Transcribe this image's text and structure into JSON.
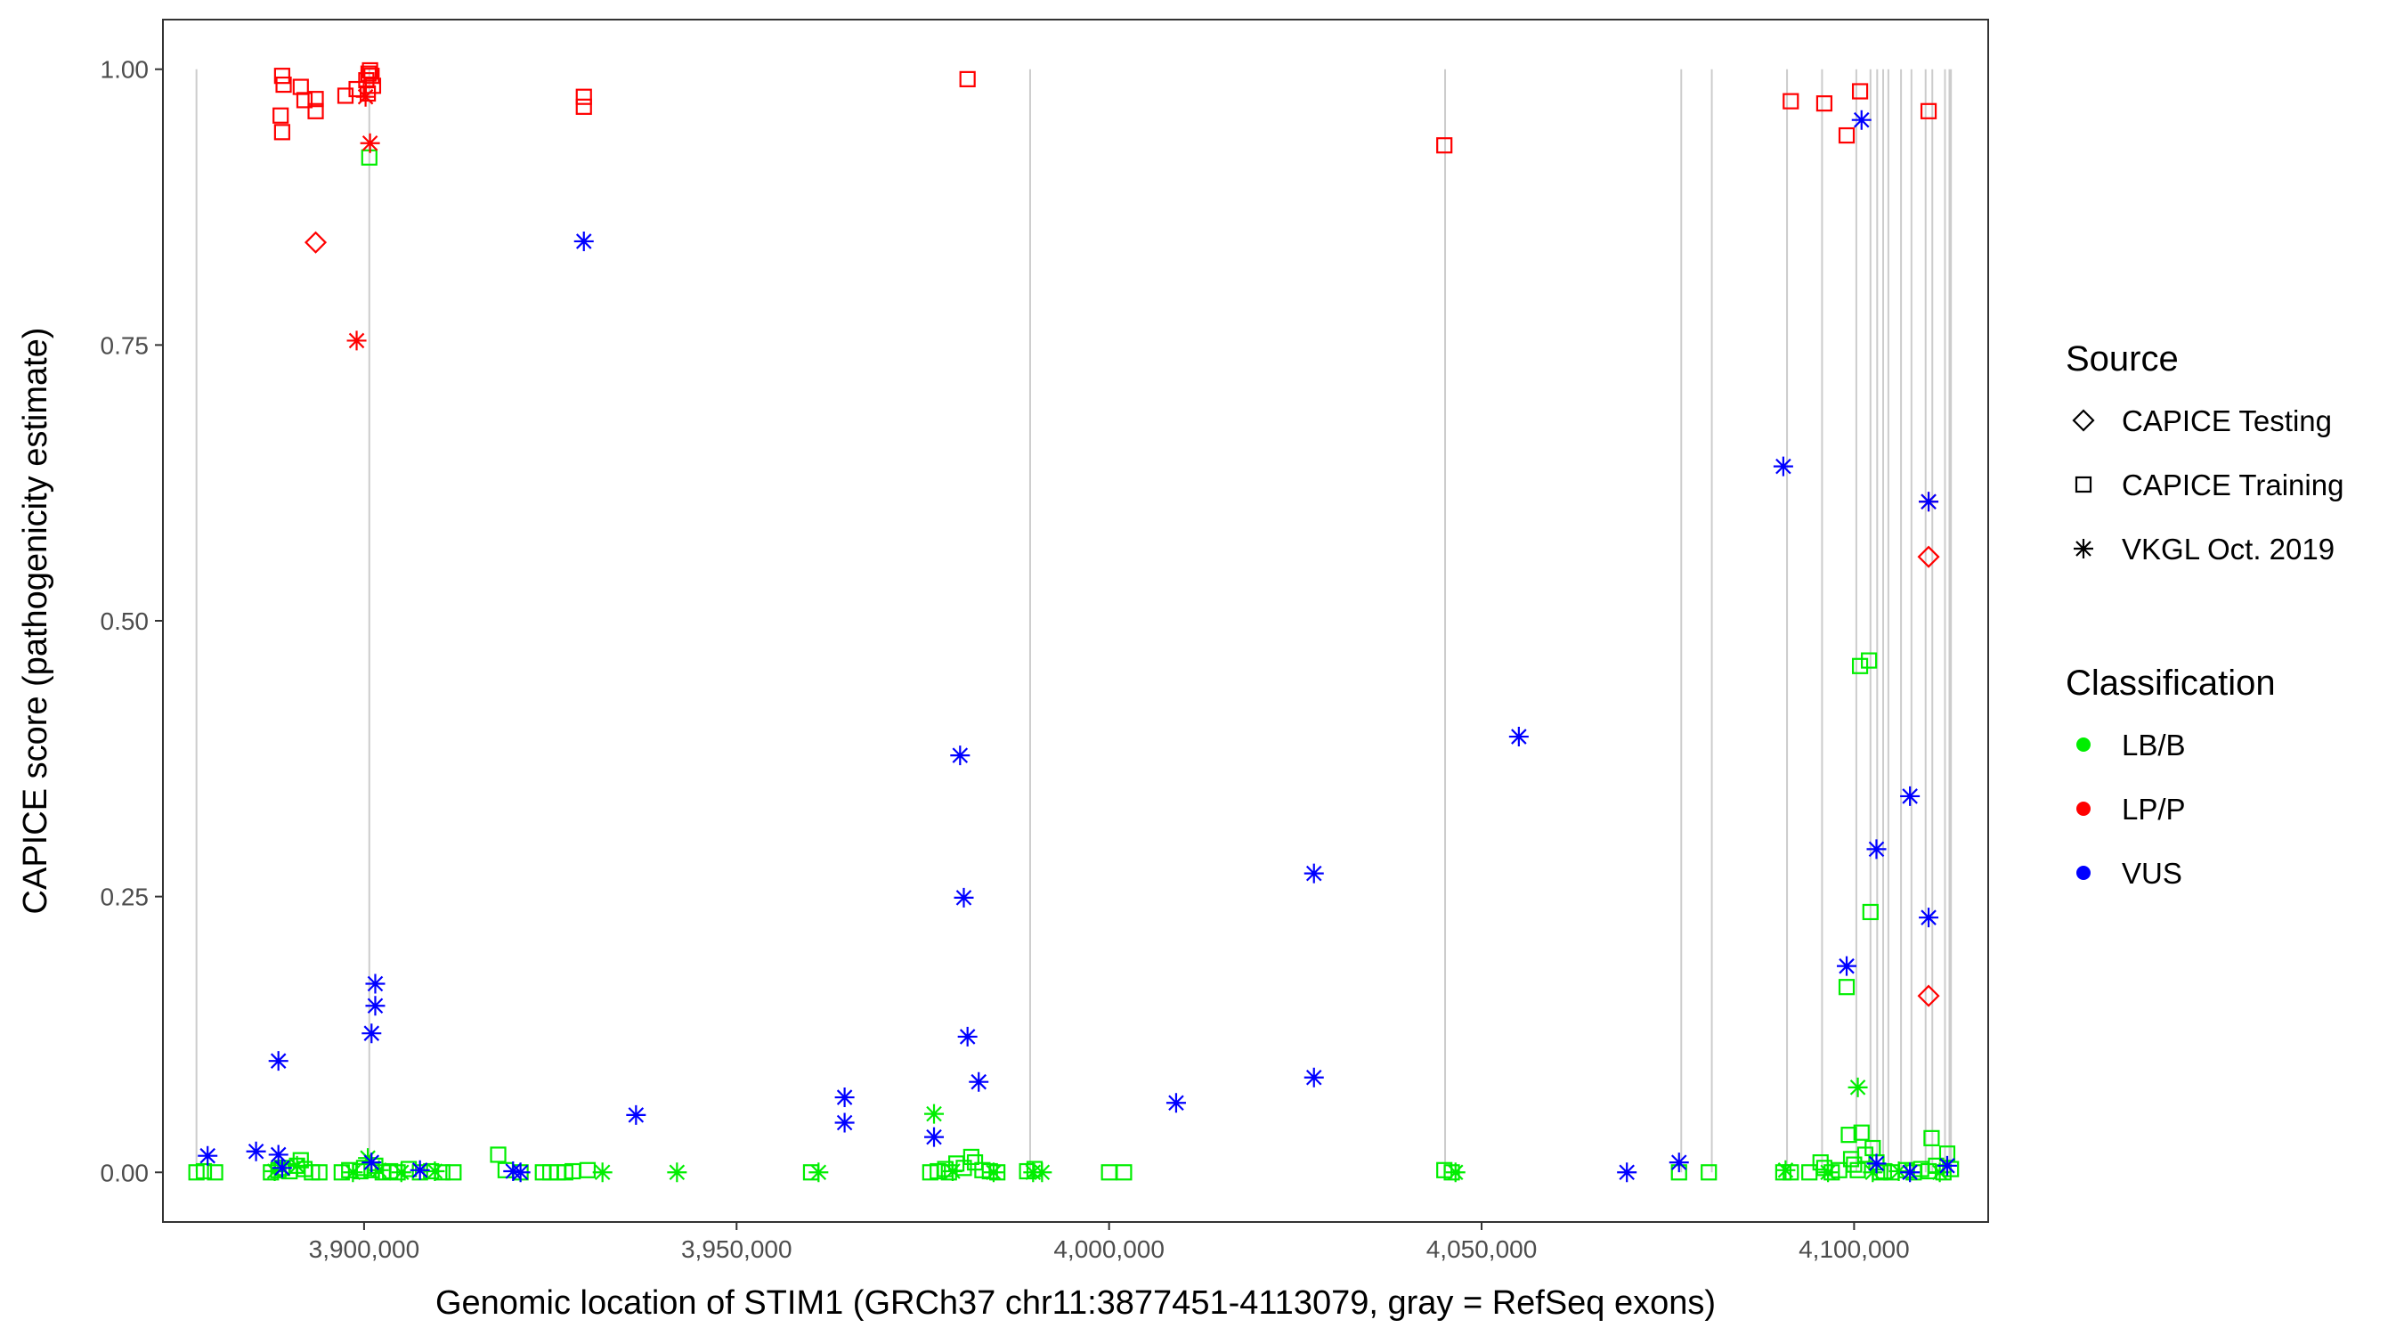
{
  "chart_data": {
    "type": "scatter",
    "xlabel": "Genomic location of STIM1 (GRCh37 chr11:3877451-4113079, gray = RefSeq exons)",
    "ylabel": "CAPICE score (pathogenicity estimate)",
    "xlim": [
      3873000,
      4118000
    ],
    "ylim": [
      -0.045,
      1.045
    ],
    "x_ticks": [
      3900000,
      3950000,
      4000000,
      4050000,
      4100000
    ],
    "x_tick_labels": [
      "3,900,000",
      "3,950,000",
      "4,000,000",
      "4,050,000",
      "4,100,000"
    ],
    "y_ticks": [
      0,
      0.25,
      0.5,
      0.75,
      1.0
    ],
    "y_tick_labels": [
      "0.00",
      "0.25",
      "0.50",
      "0.75",
      "1.00"
    ],
    "grid": false,
    "exon_lines_x": [
      3877500,
      3900700,
      3989400,
      4045100,
      4076800,
      4080900,
      4091000,
      4095700,
      4100300,
      4102200,
      4103100,
      4103900,
      4104600,
      4106300,
      4107700,
      4109600,
      4110500,
      4112200,
      4112800,
      4113000
    ],
    "exon_line_color": "#cccccc",
    "legend": {
      "placement": "right",
      "source_title": "Source",
      "source_items": [
        {
          "label": "CAPICE Testing",
          "shape": "diamond"
        },
        {
          "label": "CAPICE Training",
          "shape": "square"
        },
        {
          "label": "VKGL Oct. 2019",
          "shape": "asterisk"
        }
      ],
      "class_title": "Classification",
      "class_items": [
        {
          "label": "LB/B",
          "color": "#00ee00"
        },
        {
          "label": "LP/P",
          "color": "#ff0000"
        },
        {
          "label": "VUS",
          "color": "#0000ff"
        }
      ]
    },
    "series": [
      {
        "name": "LB/B",
        "color": "#00ee00",
        "points": [
          [
            3877500,
            0,
            "square"
          ],
          [
            3878500,
            0.001,
            "square"
          ],
          [
            3880000,
            0,
            "square"
          ],
          [
            3887500,
            0,
            "square"
          ],
          [
            3888500,
            0.002,
            "square"
          ],
          [
            3889000,
            0.004,
            "square"
          ],
          [
            3890000,
            0.001,
            "square"
          ],
          [
            3891000,
            0.006,
            "square"
          ],
          [
            3891500,
            0.011,
            "square"
          ],
          [
            3892000,
            0.003,
            "square"
          ],
          [
            3893000,
            0,
            "square"
          ],
          [
            3894000,
            0,
            "square"
          ],
          [
            3897000,
            0,
            "square"
          ],
          [
            3898000,
            0.002,
            "square"
          ],
          [
            3899500,
            0.001,
            "square"
          ],
          [
            3900000,
            0.004,
            "square"
          ],
          [
            3900700,
            0.92,
            "square"
          ],
          [
            3901000,
            0.002,
            "square"
          ],
          [
            3901500,
            0.006,
            "square"
          ],
          [
            3902500,
            0,
            "square"
          ],
          [
            3903500,
            0.001,
            "square"
          ],
          [
            3904500,
            0,
            "square"
          ],
          [
            3906000,
            0.003,
            "square"
          ],
          [
            3907500,
            0,
            "square"
          ],
          [
            3909000,
            0.001,
            "square"
          ],
          [
            3910500,
            0,
            "square"
          ],
          [
            3912000,
            0,
            "square"
          ],
          [
            3918000,
            0.016,
            "square"
          ],
          [
            3919000,
            0.002,
            "square"
          ],
          [
            3921000,
            0,
            "square"
          ],
          [
            3924000,
            0,
            "square"
          ],
          [
            3925000,
            0,
            "square"
          ],
          [
            3926000,
            0,
            "square"
          ],
          [
            3927000,
            0,
            "square"
          ],
          [
            3928000,
            0.001,
            "square"
          ],
          [
            3930000,
            0.002,
            "square"
          ],
          [
            3960000,
            0,
            "square"
          ],
          [
            3976000,
            0,
            "square"
          ],
          [
            3977000,
            0.001,
            "square"
          ],
          [
            3978000,
            0.003,
            "square"
          ],
          [
            3978500,
            0,
            "square"
          ],
          [
            3979500,
            0.008,
            "square"
          ],
          [
            3980500,
            0.004,
            "square"
          ],
          [
            3981500,
            0.014,
            "square"
          ],
          [
            3982000,
            0.009,
            "square"
          ],
          [
            3983000,
            0.002,
            "square"
          ],
          [
            3984000,
            0.001,
            "square"
          ],
          [
            3985000,
            0,
            "square"
          ],
          [
            3989000,
            0.001,
            "square"
          ],
          [
            3990000,
            0.003,
            "square"
          ],
          [
            4000000,
            0,
            "square"
          ],
          [
            4002000,
            0,
            "square"
          ],
          [
            4045000,
            0.002,
            "square"
          ],
          [
            4046000,
            0,
            "square"
          ],
          [
            4076500,
            0,
            "square"
          ],
          [
            4080500,
            0,
            "square"
          ],
          [
            4090500,
            0,
            "square"
          ],
          [
            4091500,
            0,
            "square"
          ],
          [
            4094000,
            0,
            "square"
          ],
          [
            4095500,
            0.009,
            "square"
          ],
          [
            4096000,
            0.004,
            "square"
          ],
          [
            4097000,
            0,
            "square"
          ],
          [
            4098000,
            0.002,
            "square"
          ],
          [
            4099000,
            0.168,
            "square"
          ],
          [
            4099300,
            0.034,
            "square"
          ],
          [
            4099600,
            0.012,
            "square"
          ],
          [
            4100000,
            0.007,
            "square"
          ],
          [
            4100500,
            0.002,
            "square"
          ],
          [
            4100800,
            0.459,
            "square"
          ],
          [
            4101000,
            0.036,
            "square"
          ],
          [
            4101500,
            0.016,
            "square"
          ],
          [
            4102000,
            0.464,
            "square"
          ],
          [
            4102200,
            0.236,
            "square"
          ],
          [
            4102500,
            0.022,
            "square"
          ],
          [
            4103000,
            0.009,
            "square"
          ],
          [
            4103500,
            0,
            "square"
          ],
          [
            4104000,
            0.001,
            "square"
          ],
          [
            4105000,
            0,
            "square"
          ],
          [
            4107000,
            0.002,
            "square"
          ],
          [
            4108000,
            0,
            "square"
          ],
          [
            4109000,
            0.003,
            "square"
          ],
          [
            4110000,
            0.001,
            "square"
          ],
          [
            4110400,
            0.031,
            "square"
          ],
          [
            4111000,
            0.006,
            "square"
          ],
          [
            4112000,
            0,
            "square"
          ],
          [
            4112500,
            0.017,
            "square"
          ],
          [
            4113000,
            0.003,
            "square"
          ],
          [
            3888000,
            0.001,
            "asterisk"
          ],
          [
            3891000,
            0.006,
            "asterisk"
          ],
          [
            3898500,
            0,
            "asterisk"
          ],
          [
            3900500,
            0.013,
            "asterisk"
          ],
          [
            3902000,
            0.002,
            "asterisk"
          ],
          [
            3905000,
            0,
            "asterisk"
          ],
          [
            3909500,
            0.001,
            "asterisk"
          ],
          [
            3932000,
            0,
            "asterisk"
          ],
          [
            3942000,
            0,
            "asterisk"
          ],
          [
            3961000,
            0,
            "asterisk"
          ],
          [
            3976500,
            0.053,
            "asterisk"
          ],
          [
            3979000,
            0.001,
            "asterisk"
          ],
          [
            3984500,
            0,
            "asterisk"
          ],
          [
            3989800,
            0,
            "asterisk"
          ],
          [
            3991000,
            0,
            "asterisk"
          ],
          [
            4046500,
            0,
            "asterisk"
          ],
          [
            4090800,
            0.002,
            "asterisk"
          ],
          [
            4096500,
            0,
            "asterisk"
          ],
          [
            4100500,
            0.077,
            "asterisk"
          ],
          [
            4102500,
            0,
            "asterisk"
          ],
          [
            4106000,
            0.001,
            "asterisk"
          ],
          [
            4111500,
            0,
            "asterisk"
          ]
        ]
      },
      {
        "name": "LP/P",
        "color": "#ff0000",
        "points": [
          [
            3889000,
            0.994,
            "square"
          ],
          [
            3889200,
            0.986,
            "square"
          ],
          [
            3888800,
            0.958,
            "square"
          ],
          [
            3889000,
            0.943,
            "square"
          ],
          [
            3891500,
            0.984,
            "square"
          ],
          [
            3892000,
            0.972,
            "square"
          ],
          [
            3893500,
            0.973,
            "square"
          ],
          [
            3893500,
            0.962,
            "square"
          ],
          [
            3897500,
            0.976,
            "square"
          ],
          [
            3899000,
            0.982,
            "square"
          ],
          [
            3900300,
            0.99,
            "square"
          ],
          [
            3900600,
            0.996,
            "square"
          ],
          [
            3900800,
            0.999,
            "square"
          ],
          [
            3901000,
            0.994,
            "square"
          ],
          [
            3901200,
            0.985,
            "square"
          ],
          [
            3900500,
            0.978,
            "square"
          ],
          [
            3929500,
            0.975,
            "square"
          ],
          [
            3929500,
            0.966,
            "square"
          ],
          [
            3981000,
            0.991,
            "square"
          ],
          [
            4045000,
            0.931,
            "square"
          ],
          [
            4091500,
            0.971,
            "square"
          ],
          [
            4096000,
            0.969,
            "square"
          ],
          [
            4099000,
            0.94,
            "square"
          ],
          [
            4100800,
            0.98,
            "square"
          ],
          [
            4110000,
            0.962,
            "square"
          ],
          [
            3893500,
            0.843,
            "diamond"
          ],
          [
            4110000,
            0.558,
            "diamond"
          ],
          [
            4110000,
            0.16,
            "diamond"
          ],
          [
            3900200,
            0.975,
            "asterisk"
          ],
          [
            3900800,
            0.933,
            "asterisk"
          ],
          [
            3899000,
            0.754,
            "asterisk"
          ],
          [
            4110000,
            0.608,
            "asterisk"
          ]
        ]
      },
      {
        "name": "VUS",
        "color": "#0000ff",
        "points": [
          [
            3929500,
            0.844,
            "asterisk"
          ],
          [
            4101000,
            0.954,
            "asterisk"
          ],
          [
            4090500,
            0.64,
            "asterisk"
          ],
          [
            4110000,
            0.608,
            "asterisk"
          ],
          [
            4055000,
            0.395,
            "asterisk"
          ],
          [
            3980000,
            0.378,
            "asterisk"
          ],
          [
            4107500,
            0.341,
            "asterisk"
          ],
          [
            4103000,
            0.293,
            "asterisk"
          ],
          [
            4027500,
            0.271,
            "asterisk"
          ],
          [
            3980500,
            0.249,
            "asterisk"
          ],
          [
            4110000,
            0.231,
            "asterisk"
          ],
          [
            4099000,
            0.187,
            "asterisk"
          ],
          [
            3901500,
            0.171,
            "asterisk"
          ],
          [
            3901500,
            0.151,
            "asterisk"
          ],
          [
            3901000,
            0.126,
            "asterisk"
          ],
          [
            3981000,
            0.123,
            "asterisk"
          ],
          [
            3888500,
            0.101,
            "asterisk"
          ],
          [
            4027500,
            0.086,
            "asterisk"
          ],
          [
            3982500,
            0.082,
            "asterisk"
          ],
          [
            3964500,
            0.068,
            "asterisk"
          ],
          [
            4009000,
            0.063,
            "asterisk"
          ],
          [
            3936500,
            0.052,
            "asterisk"
          ],
          [
            3964500,
            0.045,
            "asterisk"
          ],
          [
            3976500,
            0.032,
            "asterisk"
          ],
          [
            3885500,
            0.019,
            "asterisk"
          ],
          [
            3879000,
            0.015,
            "asterisk"
          ],
          [
            3888500,
            0.016,
            "asterisk"
          ],
          [
            3889000,
            0.004,
            "asterisk"
          ],
          [
            3901000,
            0.009,
            "asterisk"
          ],
          [
            3907500,
            0.002,
            "asterisk"
          ],
          [
            3920000,
            0.001,
            "asterisk"
          ],
          [
            3921000,
            0,
            "asterisk"
          ],
          [
            4069500,
            0,
            "asterisk"
          ],
          [
            4076500,
            0.009,
            "asterisk"
          ],
          [
            4103000,
            0.008,
            "asterisk"
          ],
          [
            4107500,
            0,
            "asterisk"
          ],
          [
            4112500,
            0.006,
            "asterisk"
          ]
        ]
      }
    ]
  }
}
